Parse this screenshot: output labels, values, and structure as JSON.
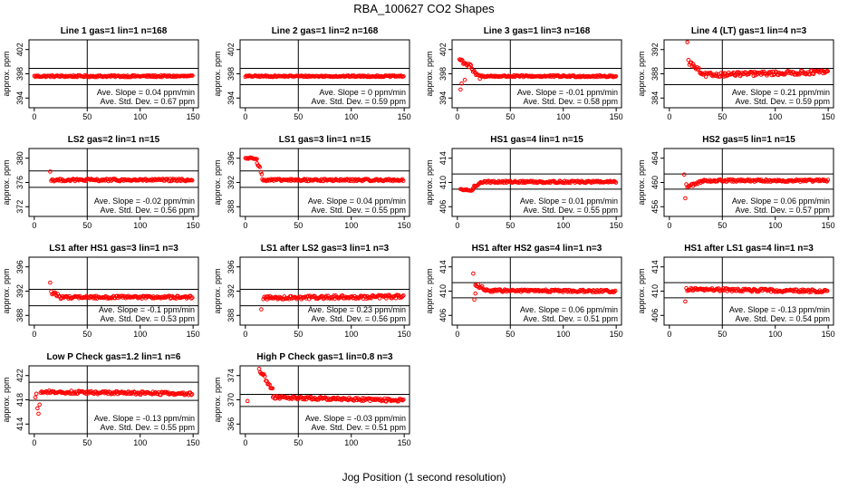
{
  "title": "RBA_100627  CO2 Shapes",
  "xlabel": "Jog Position (1 second resolution)",
  "point_color": "#ff0000",
  "chart_data": [
    {
      "type": "scatter",
      "title": "Line 1 gas=1 lin=1 n=168",
      "ylabel": "approx. ppm",
      "xlim": [
        -5,
        155
      ],
      "ylim": [
        392.4,
        403.6
      ],
      "xticks": [
        0,
        50,
        100,
        150
      ],
      "yticks": [
        394,
        398,
        402
      ],
      "vline": 50,
      "hlines": [
        398.9,
        396.2
      ],
      "slope": "Ave. Slope = 0.04  ppm/min",
      "stddev": "Ave. Std. Dev. = 0.67  ppm",
      "segments": [
        {
          "x0": 0,
          "x1": 150,
          "y0": 397.6,
          "y1": 397.6,
          "noise": 0.15
        }
      ],
      "outliers": []
    },
    {
      "type": "scatter",
      "title": "Line 2 gas=1 lin=2 n=168",
      "ylabel": "approx. ppm",
      "xlim": [
        -5,
        155
      ],
      "ylim": [
        392.4,
        403.6
      ],
      "xticks": [
        0,
        50,
        100,
        150
      ],
      "yticks": [
        394,
        398,
        402
      ],
      "vline": 50,
      "hlines": [
        398.9,
        396.2
      ],
      "slope": "Ave. Slope = 0  ppm/min",
      "stddev": "Ave. Std. Dev. = 0.59  ppm",
      "segments": [
        {
          "x0": 0,
          "x1": 150,
          "y0": 397.6,
          "y1": 397.6,
          "noise": 0.12
        }
      ],
      "outliers": []
    },
    {
      "type": "scatter",
      "title": "Line 3 gas=1 lin=3 n=168",
      "ylabel": "approx. ppm",
      "xlim": [
        -5,
        155
      ],
      "ylim": [
        392.4,
        403.6
      ],
      "xticks": [
        0,
        50,
        100,
        150
      ],
      "yticks": [
        394,
        398,
        402
      ],
      "vline": 50,
      "hlines": [
        398.9,
        396.2
      ],
      "slope": "Ave. Slope = -0.01  ppm/min",
      "stddev": "Ave. Std. Dev. = 0.58  ppm",
      "segments": [
        {
          "x0": 2,
          "x1": 14,
          "y0": 400.4,
          "y1": 399.0,
          "noise": 0.4
        },
        {
          "x0": 14,
          "x1": 22,
          "y0": 398.5,
          "y1": 397.3,
          "noise": 0.3
        },
        {
          "x0": 22,
          "x1": 150,
          "y0": 397.6,
          "y1": 397.6,
          "noise": 0.15
        }
      ],
      "outliers": [
        [
          3,
          395.4
        ],
        [
          4,
          396.4
        ],
        [
          7,
          397.0
        ]
      ]
    },
    {
      "type": "scatter",
      "title": "Line 4 (LT) gas=1 lin=4 n=3",
      "ylabel": "approx. ppm",
      "xlim": [
        -5,
        155
      ],
      "ylim": [
        382.4,
        393.6
      ],
      "xticks": [
        0,
        50,
        100,
        150
      ],
      "yticks": [
        384,
        388,
        392
      ],
      "vline": 50,
      "hlines": [
        388.9,
        386.2
      ],
      "slope": "Ave. Slope = 0.21  ppm/min",
      "stddev": "Ave. Std. Dev. = 0.59  ppm",
      "segments": [
        {
          "x0": 18,
          "x1": 30,
          "y0": 390.0,
          "y1": 388.2,
          "noise": 0.4
        },
        {
          "x0": 30,
          "x1": 150,
          "y0": 387.8,
          "y1": 388.3,
          "noise": 0.35
        }
      ],
      "outliers": [
        [
          17,
          393.2
        ]
      ]
    },
    {
      "type": "scatter",
      "title": "LS2 gas=2 lin=1 n=15",
      "ylabel": "approx. ppm",
      "xlim": [
        -5,
        155
      ],
      "ylim": [
        370.4,
        381.6
      ],
      "xticks": [
        0,
        50,
        100,
        150
      ],
      "yticks": [
        372,
        376,
        380
      ],
      "vline": 50,
      "hlines": [
        377.9,
        375.2
      ],
      "slope": "Ave. Slope = -0.02  ppm/min",
      "stddev": "Ave. Std. Dev. = 0.56  ppm",
      "segments": [
        {
          "x0": 16,
          "x1": 150,
          "y0": 376.4,
          "y1": 376.4,
          "noise": 0.2
        }
      ],
      "outliers": [
        [
          15,
          377.8
        ]
      ]
    },
    {
      "type": "scatter",
      "title": "LS1 gas=3 lin=1 n=15",
      "ylabel": "approx. ppm",
      "xlim": [
        -5,
        155
      ],
      "ylim": [
        386.4,
        397.6
      ],
      "xticks": [
        0,
        50,
        100,
        150
      ],
      "yticks": [
        388,
        392,
        396
      ],
      "vline": 50,
      "hlines": [
        393.9,
        391.2
      ],
      "slope": "Ave. Slope = 0.04  ppm/min",
      "stddev": "Ave. Std. Dev. = 0.55  ppm",
      "segments": [
        {
          "x0": 0,
          "x1": 11,
          "y0": 396.0,
          "y1": 396.0,
          "noise": 0.15
        },
        {
          "x0": 11,
          "x1": 16,
          "y0": 395.5,
          "y1": 393.2,
          "noise": 0.4
        },
        {
          "x0": 16,
          "x1": 150,
          "y0": 392.4,
          "y1": 392.4,
          "noise": 0.18
        }
      ],
      "outliers": []
    },
    {
      "type": "scatter",
      "title": "HS1 gas=4 lin=1 n=15",
      "ylabel": "approx. ppm",
      "xlim": [
        -5,
        155
      ],
      "ylim": [
        404.4,
        415.6
      ],
      "xticks": [
        0,
        50,
        100,
        150
      ],
      "yticks": [
        406,
        410,
        414
      ],
      "vline": 50,
      "hlines": [
        411.4,
        408.9
      ],
      "slope": "Ave. Slope = 0.01  ppm/min",
      "stddev": "Ave. Std. Dev. = 0.55  ppm",
      "segments": [
        {
          "x0": 3,
          "x1": 15,
          "y0": 408.8,
          "y1": 408.7,
          "noise": 0.12
        },
        {
          "x0": 15,
          "x1": 22,
          "y0": 409.2,
          "y1": 410.0,
          "noise": 0.2
        },
        {
          "x0": 22,
          "x1": 150,
          "y0": 410.1,
          "y1": 410.1,
          "noise": 0.18
        }
      ],
      "outliers": []
    },
    {
      "type": "scatter",
      "title": "HS2 gas=5 lin=1 n=15",
      "ylabel": "approx. ppm",
      "xlim": [
        -5,
        155
      ],
      "ylim": [
        454.4,
        465.6
      ],
      "xticks": [
        0,
        50,
        100,
        150
      ],
      "yticks": [
        456,
        460,
        464
      ],
      "vline": 50,
      "hlines": [
        461.4,
        458.9
      ],
      "slope": "Ave. Slope = 0.06  ppm/min",
      "stddev": "Ave. Std. Dev. = 0.57  ppm",
      "segments": [
        {
          "x0": 17,
          "x1": 30,
          "y0": 459.3,
          "y1": 460.1,
          "noise": 0.25
        },
        {
          "x0": 30,
          "x1": 150,
          "y0": 460.3,
          "y1": 460.3,
          "noise": 0.18
        }
      ],
      "outliers": [
        [
          14,
          461.3
        ],
        [
          15,
          457.4
        ],
        [
          16,
          459.7
        ]
      ]
    },
    {
      "type": "scatter",
      "title": "LS1 after HS1 gas=3 lin=1 n=3",
      "ylabel": "approx. ppm",
      "xlim": [
        -5,
        155
      ],
      "ylim": [
        386.4,
        397.6
      ],
      "xticks": [
        0,
        50,
        100,
        150
      ],
      "yticks": [
        388,
        392,
        396
      ],
      "vline": 50,
      "hlines": [
        392.3,
        389.6
      ],
      "slope": "Ave. Slope = -0.1  ppm/min",
      "stddev": "Ave. Std. Dev. = 0.53  ppm",
      "segments": [
        {
          "x0": 16,
          "x1": 26,
          "y0": 391.8,
          "y1": 391.0,
          "noise": 0.35
        },
        {
          "x0": 26,
          "x1": 150,
          "y0": 391.0,
          "y1": 391.0,
          "noise": 0.22
        }
      ],
      "outliers": [
        [
          15,
          393.4
        ]
      ]
    },
    {
      "type": "scatter",
      "title": "LS1 after LS2 gas=3 lin=1 n=3",
      "ylabel": "approx. ppm",
      "xlim": [
        -5,
        155
      ],
      "ylim": [
        386.4,
        397.6
      ],
      "xticks": [
        0,
        50,
        100,
        150
      ],
      "yticks": [
        388,
        392,
        396
      ],
      "vline": 50,
      "hlines": [
        392.3,
        389.6
      ],
      "slope": "Ave. Slope = 0.23  ppm/min",
      "stddev": "Ave. Std. Dev. = 0.56  ppm",
      "segments": [
        {
          "x0": 17,
          "x1": 150,
          "y0": 390.9,
          "y1": 391.1,
          "noise": 0.28
        }
      ],
      "outliers": [
        [
          15,
          389.0
        ]
      ]
    },
    {
      "type": "scatter",
      "title": "HS1 after HS2 gas=4 lin=1 n=3",
      "ylabel": "approx. ppm",
      "xlim": [
        -5,
        155
      ],
      "ylim": [
        404.4,
        415.6
      ],
      "xticks": [
        0,
        50,
        100,
        150
      ],
      "yticks": [
        406,
        410,
        414
      ],
      "vline": 50,
      "hlines": [
        411.4,
        408.9
      ],
      "slope": "Ave. Slope = 0.06  ppm/min",
      "stddev": "Ave. Std. Dev. = 0.51  ppm",
      "segments": [
        {
          "x0": 17,
          "x1": 25,
          "y0": 411.0,
          "y1": 410.4,
          "noise": 0.3
        },
        {
          "x0": 25,
          "x1": 150,
          "y0": 410.1,
          "y1": 410.0,
          "noise": 0.2
        }
      ],
      "outliers": [
        [
          15,
          412.9
        ],
        [
          16,
          408.6
        ],
        [
          17,
          409.6
        ]
      ]
    },
    {
      "type": "scatter",
      "title": "HS1 after LS1 gas=4 lin=1 n=3",
      "ylabel": "approx. ppm",
      "xlim": [
        -5,
        155
      ],
      "ylim": [
        404.4,
        415.6
      ],
      "xticks": [
        0,
        50,
        100,
        150
      ],
      "yticks": [
        406,
        410,
        414
      ],
      "vline": 50,
      "hlines": [
        411.4,
        408.9
      ],
      "slope": "Ave. Slope = -0.13  ppm/min",
      "stddev": "Ave. Std. Dev. = 0.54  ppm",
      "segments": [
        {
          "x0": 16,
          "x1": 150,
          "y0": 410.3,
          "y1": 410.0,
          "noise": 0.25
        }
      ],
      "outliers": [
        [
          15,
          408.3
        ]
      ]
    },
    {
      "type": "scatter",
      "title": "Low P Check gas=1.2 lin=1 n=6",
      "ylabel": "approx. ppm",
      "xlim": [
        -5,
        155
      ],
      "ylim": [
        412.4,
        423.6
      ],
      "xticks": [
        0,
        50,
        100,
        150
      ],
      "yticks": [
        414,
        418,
        422
      ],
      "vline": 50,
      "hlines": [
        420.9,
        417.9
      ],
      "slope": "Ave. Slope = -0.13  ppm/min",
      "stddev": "Ave. Std. Dev. = 0.55  ppm",
      "segments": [
        {
          "x0": 6,
          "x1": 150,
          "y0": 419.3,
          "y1": 419.0,
          "noise": 0.25
        }
      ],
      "outliers": [
        [
          1,
          418.4
        ],
        [
          2,
          419.0
        ],
        [
          3,
          416.6
        ],
        [
          4,
          415.7
        ],
        [
          5,
          417.2
        ]
      ]
    },
    {
      "type": "scatter",
      "title": "High P Check gas=1 lin=0.8 n=3",
      "ylabel": "approx. ppm",
      "xlim": [
        -5,
        155
      ],
      "ylim": [
        364.4,
        375.6
      ],
      "xticks": [
        0,
        50,
        100,
        150
      ],
      "yticks": [
        366,
        370,
        374
      ],
      "vline": 50,
      "hlines": [
        370.9,
        368.9
      ],
      "slope": "Ave. Slope = -0.03  ppm/min",
      "stddev": "Ave. Std. Dev. = 0.51  ppm",
      "segments": [
        {
          "x0": 13,
          "x1": 26,
          "y0": 375.0,
          "y1": 371.6,
          "noise": 0.4
        },
        {
          "x0": 26,
          "x1": 150,
          "y0": 370.4,
          "y1": 369.9,
          "noise": 0.25
        }
      ],
      "outliers": [
        [
          2,
          369.8
        ]
      ]
    }
  ]
}
